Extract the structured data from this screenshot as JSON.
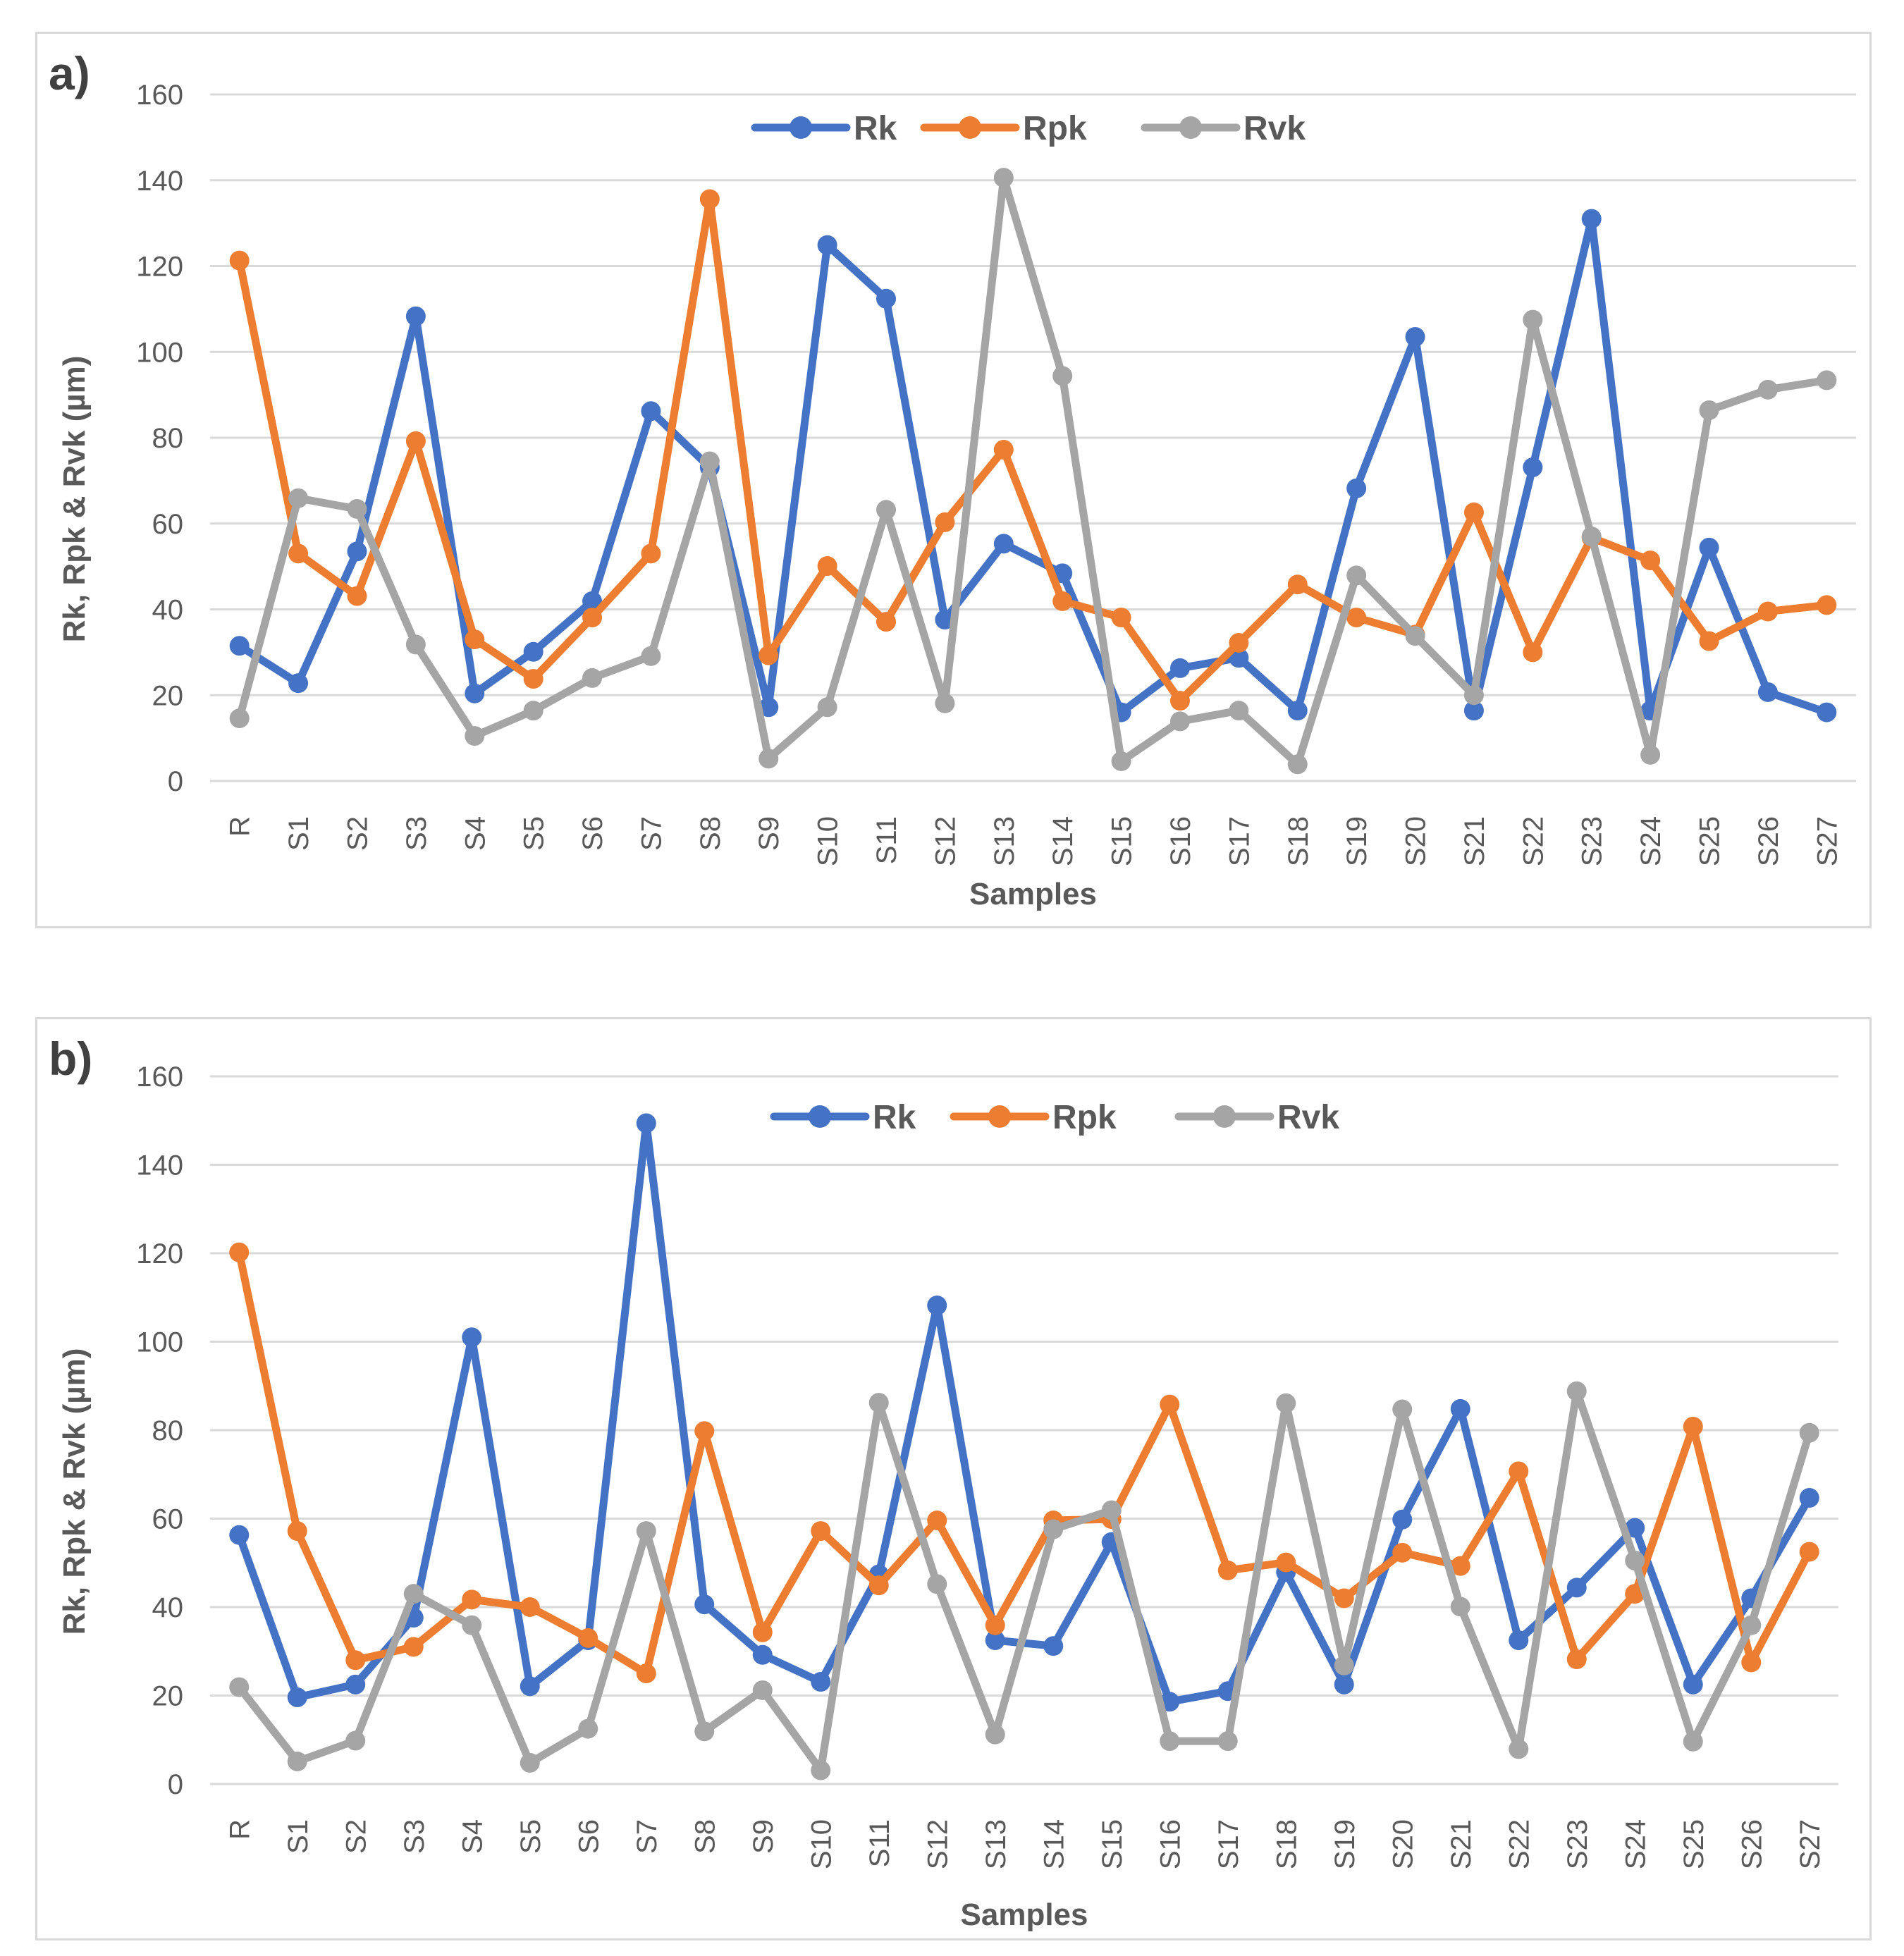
{
  "chart_data": [
    {
      "type": "line",
      "panel_label": "a)",
      "xlabel": "Samples",
      "ylabel": "Rk, Rpk & Rvk (µm)",
      "ylim": [
        0,
        160
      ],
      "yticks": [
        0,
        20,
        40,
        60,
        80,
        100,
        120,
        140,
        160
      ],
      "grid": true,
      "legend_position": "top-center",
      "categories": [
        "R",
        "S1",
        "S2",
        "S3",
        "S4",
        "S5",
        "S6",
        "S7",
        "S8",
        "S9",
        "S10",
        "S11",
        "S12",
        "S13",
        "S14",
        "S15",
        "S16",
        "S17",
        "S18",
        "S19",
        "S20",
        "S21",
        "S22",
        "S23",
        "S24",
        "S25",
        "S26",
        "S27"
      ],
      "series": [
        {
          "name": "Rk",
          "color": "#4472c4",
          "values": [
            31.5,
            22.8,
            53.5,
            108.3,
            20.4,
            30.1,
            41.9,
            86.2,
            73.1,
            17.2,
            124.9,
            112.4,
            37.6,
            55.3,
            48.4,
            16.0,
            26.3,
            28.7,
            16.4,
            68.2,
            103.5,
            16.4,
            73.1,
            131.0,
            16.4,
            54.4,
            20.7,
            16.0
          ]
        },
        {
          "name": "Rpk",
          "color": "#ed7d31",
          "values": [
            121.3,
            53.0,
            43.1,
            79.2,
            33.0,
            23.8,
            38.1,
            53.0,
            135.6,
            29.3,
            50.1,
            37.1,
            60.3,
            77.2,
            41.9,
            38.1,
            18.7,
            32.2,
            45.8,
            38.1,
            34.1,
            62.6,
            30.0,
            56.7,
            51.4,
            32.6,
            39.5,
            41.0
          ]
        },
        {
          "name": "Rvk",
          "color": "#a5a5a5",
          "values": [
            14.6,
            65.9,
            63.4,
            31.8,
            10.5,
            16.4,
            24.0,
            29.1,
            74.5,
            5.2,
            17.2,
            63.2,
            18.1,
            140.6,
            94.4,
            4.6,
            13.9,
            16.4,
            3.9,
            47.9,
            33.8,
            20.0,
            107.5,
            57.0,
            6.1,
            86.4,
            91.2,
            93.4
          ]
        }
      ]
    },
    {
      "type": "line",
      "panel_label": "b)",
      "xlabel": "Samples",
      "ylabel": "Rk, Rpk & Rvk (µm)",
      "ylim": [
        0,
        160
      ],
      "yticks": [
        0,
        20,
        40,
        60,
        80,
        100,
        120,
        140,
        160
      ],
      "grid": true,
      "legend_position": "top-center",
      "categories": [
        "R",
        "S1",
        "S2",
        "S3",
        "S4",
        "S5",
        "S6",
        "S7",
        "S8",
        "S9",
        "S10",
        "S11",
        "S12",
        "S13",
        "S14",
        "S15",
        "S16",
        "S17",
        "S18",
        "S19",
        "S20",
        "S21",
        "S22",
        "S23",
        "S24",
        "S25",
        "S26",
        "S27"
      ],
      "series": [
        {
          "name": "Rk",
          "color": "#4472c4",
          "values": [
            56.3,
            19.6,
            22.5,
            37.6,
            101.0,
            22.1,
            32.5,
            149.4,
            40.6,
            29.2,
            23.1,
            47.4,
            108.2,
            32.5,
            31.2,
            54.7,
            18.6,
            21.0,
            47.9,
            22.5,
            59.8,
            84.8,
            32.5,
            44.4,
            57.9,
            22.5,
            42.0,
            64.7
          ]
        },
        {
          "name": "Rpk",
          "color": "#ed7d31",
          "values": [
            120.2,
            57.2,
            28.0,
            31.0,
            41.7,
            40.0,
            33.0,
            25.0,
            79.8,
            34.3,
            57.2,
            44.9,
            59.6,
            35.9,
            59.6,
            59.9,
            85.8,
            48.3,
            50.1,
            42.0,
            52.3,
            49.3,
            70.7,
            28.2,
            43.0,
            80.8,
            27.5,
            52.5
          ]
        },
        {
          "name": "Rvk",
          "color": "#a5a5a5",
          "values": [
            21.9,
            5.1,
            9.8,
            43.0,
            35.9,
            4.8,
            12.5,
            57.2,
            11.9,
            21.2,
            3.1,
            86.2,
            45.2,
            11.2,
            57.6,
            61.9,
            9.7,
            9.7,
            86.1,
            26.8,
            84.7,
            40.1,
            7.9,
            88.8,
            50.5,
            9.6,
            35.9,
            79.4
          ]
        }
      ]
    }
  ]
}
